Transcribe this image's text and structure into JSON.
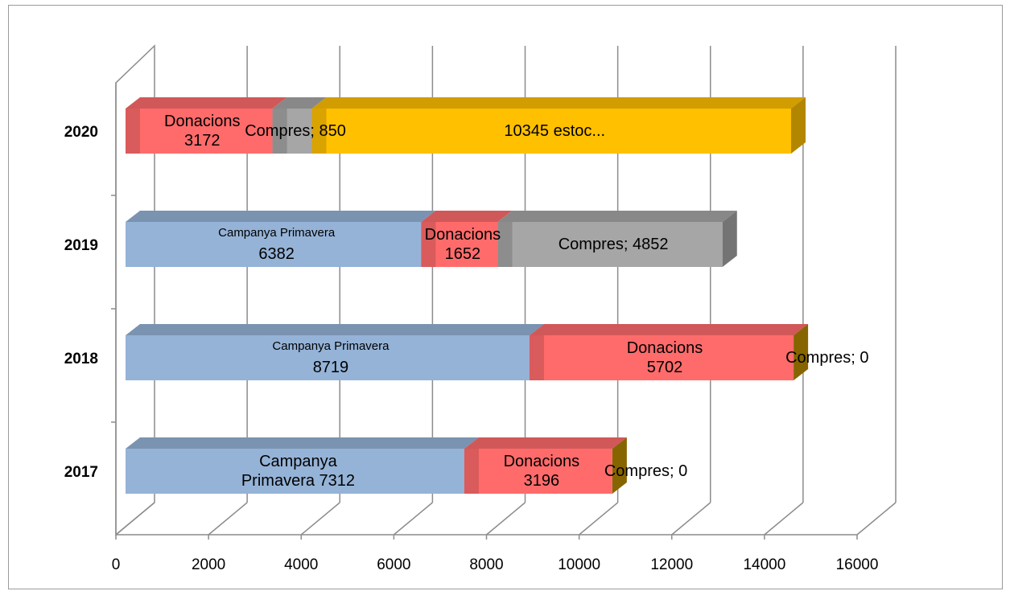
{
  "chart_data": {
    "type": "bar",
    "stacked": true,
    "orientation": "horizontal",
    "three_d": true,
    "categories": [
      "2017",
      "2018",
      "2019",
      "2020"
    ],
    "xlim": [
      0,
      16000
    ],
    "x_ticks": [
      "0",
      "2000",
      "4000",
      "6000",
      "8000",
      "10000",
      "12000",
      "14000",
      "16000"
    ],
    "grid": true,
    "legend": "none",
    "series": [
      {
        "color": "#95b3d7",
        "values": [
          7312,
          8719,
          6382,
          0
        ]
      },
      {
        "color": "#ff6b6b",
        "values": [
          3196,
          5702,
          1652,
          3172
        ]
      },
      {
        "color": "#bf9000",
        "values": [
          0,
          0,
          0,
          null
        ]
      },
      {
        "color": "#a6a6a6",
        "values": [
          null,
          null,
          4852,
          850
        ]
      },
      {
        "color": "#ffc000",
        "values": [
          null,
          null,
          null,
          10345
        ]
      }
    ],
    "data_labels": [
      {
        "series": 0,
        "category": 0,
        "lines": [
          "Campanya",
          "Primavera 7312"
        ]
      },
      {
        "series": 1,
        "category": 0,
        "lines": [
          "Donacions",
          "3196"
        ]
      },
      {
        "series": 2,
        "category": 0,
        "lines": [
          "Compres; 0"
        ]
      },
      {
        "series": 0,
        "category": 1,
        "lines": [
          "Campanya Primavera",
          "8719"
        ]
      },
      {
        "series": 1,
        "category": 1,
        "lines": [
          "Donacions",
          "5702"
        ]
      },
      {
        "series": 2,
        "category": 1,
        "lines": [
          "Compres; 0"
        ]
      },
      {
        "series": 0,
        "category": 2,
        "lines": [
          "Campanya Primavera",
          "6382"
        ]
      },
      {
        "series": 1,
        "category": 2,
        "lines": [
          "Donacions",
          "1652"
        ]
      },
      {
        "series": 3,
        "category": 2,
        "lines": [
          "Compres; 4852"
        ]
      },
      {
        "series": 1,
        "category": 3,
        "lines": [
          "Donacions",
          "3172"
        ]
      },
      {
        "series": 3,
        "category": 3,
        "lines": [
          "Compres; 850"
        ]
      },
      {
        "series": 4,
        "category": 3,
        "lines": [
          "10345 estoc..."
        ]
      }
    ]
  }
}
